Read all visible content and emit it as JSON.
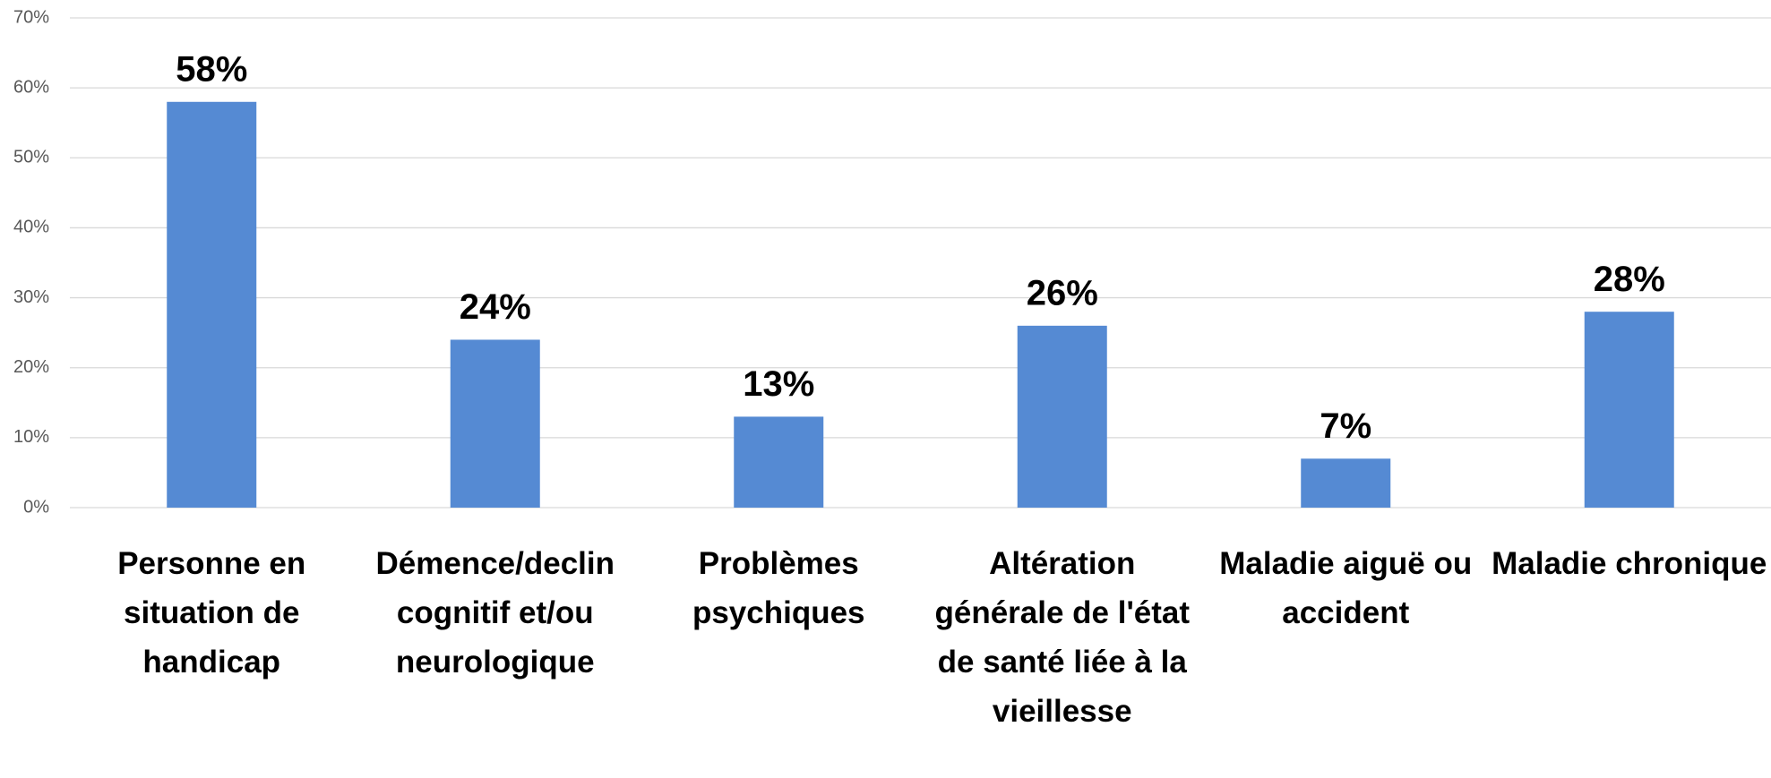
{
  "chart_data": {
    "type": "bar",
    "categories": [
      "Personne en situation de handicap",
      "Démence/declin cognitif et/ou neurologique",
      "Problèmes psychiques",
      "Altération générale de l'état de santé liée à la vieillesse",
      "Maladie aiguë ou accident",
      "Maladie chronique"
    ],
    "values": [
      58,
      24,
      13,
      26,
      7,
      28
    ],
    "value_labels": [
      "58%",
      "24%",
      "13%",
      "26%",
      "7%",
      "28%"
    ],
    "color": "#558ad3",
    "ylim": [
      0,
      70
    ],
    "yticks": [
      {
        "value": 0,
        "label": "0%"
      },
      {
        "value": 10,
        "label": "10%"
      },
      {
        "value": 20,
        "label": "20%"
      },
      {
        "value": 30,
        "label": "30%"
      },
      {
        "value": 40,
        "label": "40%"
      },
      {
        "value": 50,
        "label": "50%"
      },
      {
        "value": 60,
        "label": "60%"
      },
      {
        "value": 70,
        "label": "70%"
      }
    ],
    "grid": true
  }
}
